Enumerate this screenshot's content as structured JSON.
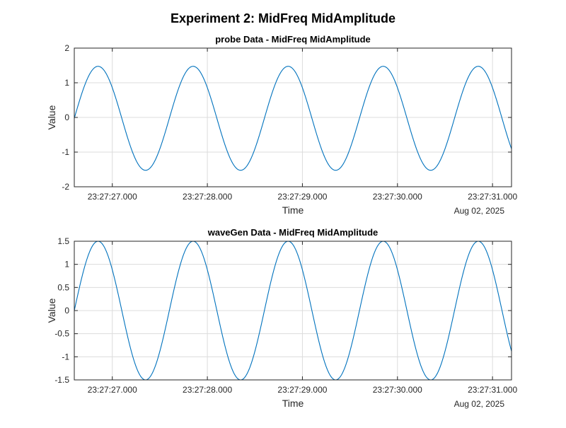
{
  "figure_title": "Experiment 2: MidFreq MidAmplitude",
  "colors": {
    "line": "#0072BD",
    "grid": "#dcdcdc",
    "axes": "#262626",
    "text": "#000000",
    "background": "#ffffff"
  },
  "chart_data": [
    {
      "type": "line",
      "title": "probe Data - MidFreq MidAmplitude",
      "xlabel": "Time",
      "ylabel": "Value",
      "x_unit": "seconds past 23:27:26",
      "date_label": "Aug 02, 2025",
      "xlim": [
        0.6,
        5.2
      ],
      "ylim": [
        -2,
        2
      ],
      "yticks": [
        -2,
        -1,
        0,
        1,
        2
      ],
      "ytick_labels": [
        "-2",
        "-1",
        "0",
        "1",
        "2"
      ],
      "xticks": [
        1,
        2,
        3,
        4,
        5
      ],
      "xtick_labels": [
        "23:27:27.000",
        "23:27:28.000",
        "23:27:29.000",
        "23:27:30.000",
        "23:27:31.000"
      ],
      "grid": true,
      "series": [
        {
          "amplitude": 1.5,
          "offset": -0.025,
          "frequency_hz": 1.0,
          "phase_zero_time": 0.6
        }
      ]
    },
    {
      "type": "line",
      "title": "waveGen Data - MidFreq MidAmplitude",
      "xlabel": "Time",
      "ylabel": "Value",
      "x_unit": "seconds past 23:27:26",
      "date_label": "Aug 02, 2025",
      "xlim": [
        0.6,
        5.2
      ],
      "ylim": [
        -1.5,
        1.5
      ],
      "yticks": [
        -1.5,
        -1,
        -0.5,
        0,
        0.5,
        1,
        1.5
      ],
      "ytick_labels": [
        "-1.5",
        "-1",
        "-0.5",
        "0",
        "0.5",
        "1",
        "1.5"
      ],
      "xticks": [
        1,
        2,
        3,
        4,
        5
      ],
      "xtick_labels": [
        "23:27:27.000",
        "23:27:28.000",
        "23:27:29.000",
        "23:27:30.000",
        "23:27:31.000"
      ],
      "grid": true,
      "series": [
        {
          "amplitude": 1.5,
          "offset": 0,
          "frequency_hz": 1.0,
          "phase_zero_time": 0.6
        }
      ]
    }
  ]
}
